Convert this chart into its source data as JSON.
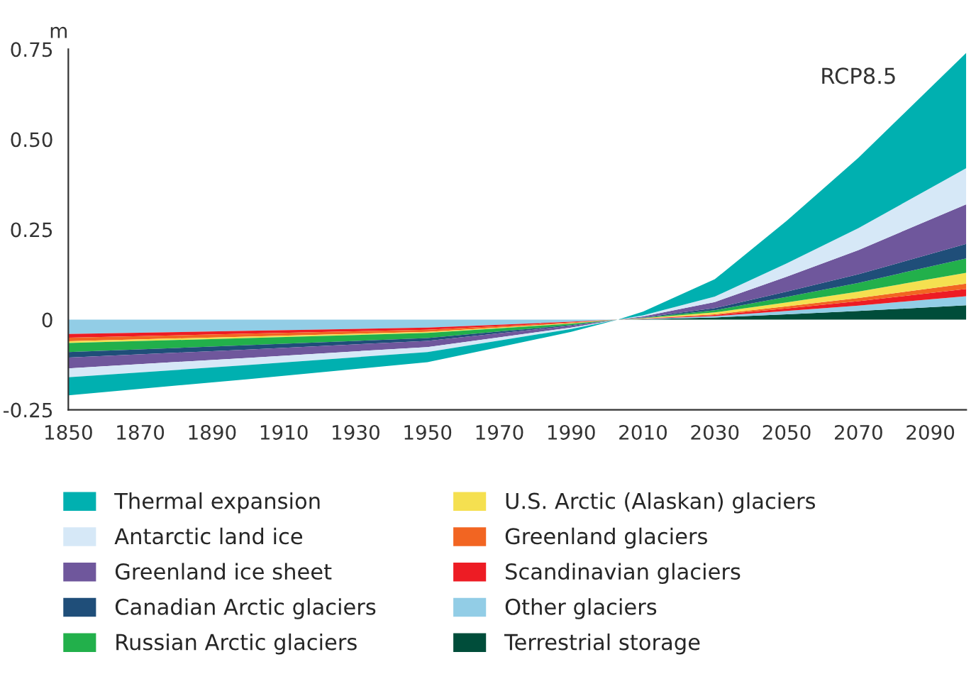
{
  "chart_data": {
    "type": "area",
    "stacked": true,
    "ylabel": "m",
    "annotations": [
      "RCP8.5"
    ],
    "x": [
      1850,
      1900,
      1950,
      1970,
      1990,
      2003,
      2010,
      2030,
      2050,
      2070,
      2100
    ],
    "xlim": [
      1850,
      2100
    ],
    "xticks": [
      1850,
      1870,
      1890,
      1910,
      1930,
      1950,
      1970,
      1990,
      2010,
      2030,
      2050,
      2070,
      2090
    ],
    "ylim": [
      -0.25,
      0.75
    ],
    "yticks": [
      -0.25,
      0,
      0.25,
      {
        "value": 0.5,
        "label": "0.50"
      },
      0.75
    ],
    "grid": false,
    "legend": "bottom",
    "series": [
      {
        "name": "Terrestrial storage",
        "color": "#004d3a",
        "values": [
          0,
          0,
          0,
          0,
          0,
          0,
          0.001,
          0.006,
          0.015,
          0.024,
          0.04
        ]
      },
      {
        "name": "Other glaciers",
        "color": "#92cde6",
        "values": [
          -0.04,
          -0.031,
          -0.022,
          -0.014,
          -0.006,
          0,
          0.001,
          0.004,
          0.009,
          0.015,
          0.025
        ]
      },
      {
        "name": "Scandinavian glaciers",
        "color": "#ed1c24",
        "values": [
          -0.01,
          -0.008,
          -0.006,
          -0.004,
          -0.002,
          0,
          0.001,
          0.003,
          0.007,
          0.012,
          0.02
        ]
      },
      {
        "name": "Greenland glaciers",
        "color": "#f26522",
        "values": [
          -0.01,
          -0.008,
          -0.006,
          -0.004,
          -0.002,
          0,
          0,
          0.002,
          0.006,
          0.009,
          0.015
        ]
      },
      {
        "name": "U.S. Arctic (Alaskan) glaciers",
        "color": "#f5e050",
        "values": [
          -0.005,
          -0.004,
          -0.003,
          -0.002,
          -0.001,
          0,
          0.001,
          0.005,
          0.011,
          0.018,
          0.03
        ]
      },
      {
        "name": "Russian Arctic glaciers",
        "color": "#22b04b",
        "values": [
          -0.025,
          -0.02,
          -0.014,
          -0.009,
          -0.004,
          0,
          0.001,
          0.006,
          0.015,
          0.024,
          0.04
        ]
      },
      {
        "name": "Canadian Arctic glaciers",
        "color": "#1f4e79",
        "values": [
          -0.015,
          -0.012,
          -0.008,
          -0.005,
          -0.002,
          0,
          0.001,
          0.006,
          0.015,
          0.024,
          0.04
        ]
      },
      {
        "name": "Greenland ice sheet",
        "color": "#6f579c",
        "values": [
          -0.03,
          -0.023,
          -0.017,
          -0.011,
          -0.005,
          0,
          0.003,
          0.017,
          0.041,
          0.067,
          0.11
        ]
      },
      {
        "name": "Antarctic land ice",
        "color": "#d6e8f7",
        "values": [
          -0.025,
          -0.02,
          -0.014,
          -0.009,
          -0.004,
          0,
          0.003,
          0.015,
          0.037,
          0.061,
          0.1
        ]
      },
      {
        "name": "Thermal expansion",
        "color": "#00b0b0",
        "values": [
          -0.05,
          -0.039,
          -0.028,
          -0.018,
          -0.008,
          0,
          0.01,
          0.048,
          0.118,
          0.195,
          0.32
        ]
      }
    ]
  }
}
